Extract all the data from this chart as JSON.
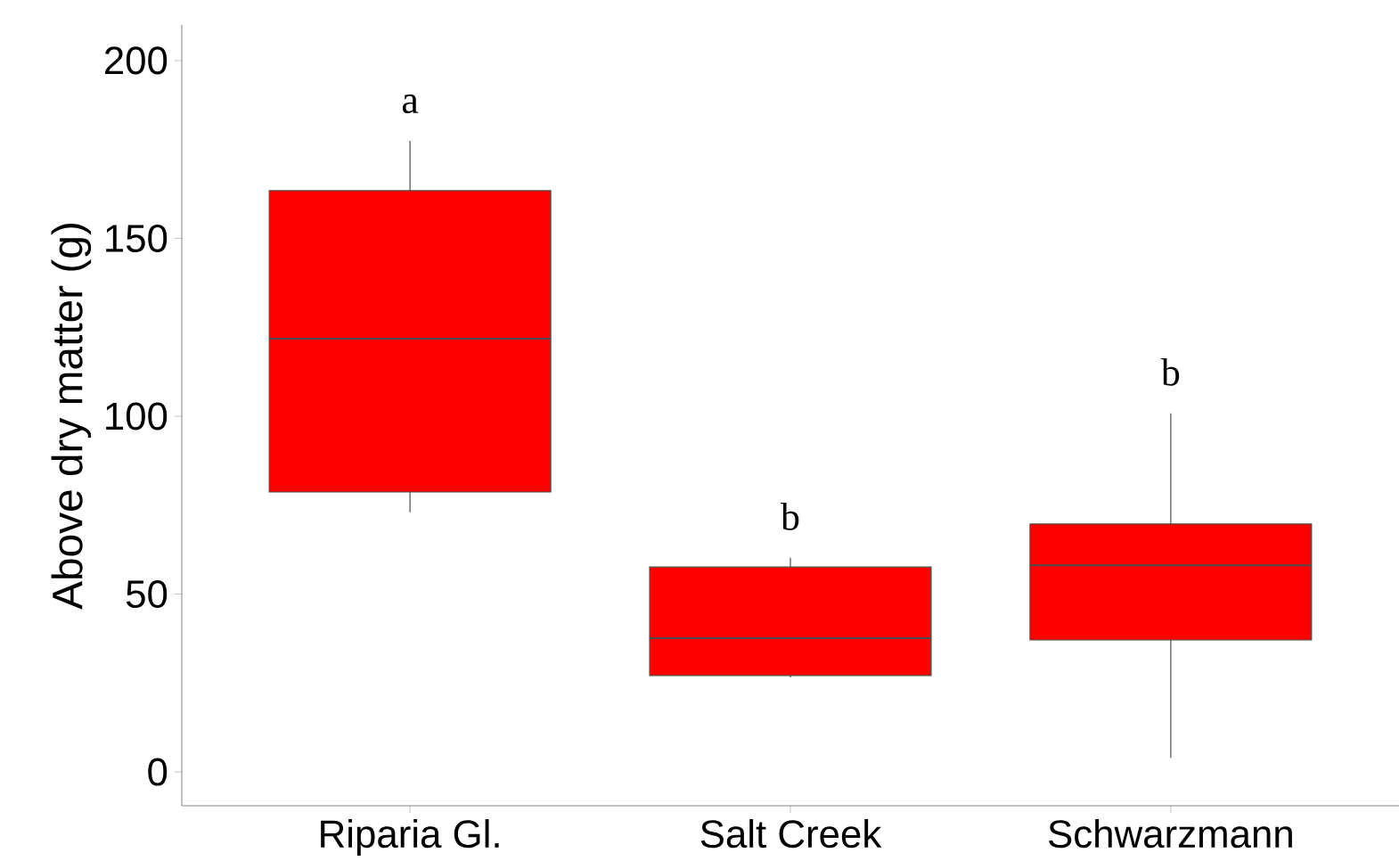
{
  "chart_data": {
    "type": "box",
    "ylabel": "Above dry matter (g)",
    "categories": [
      "Riparia Gl.",
      "Salt Creek",
      "Schwarzmann"
    ],
    "boxes": [
      {
        "low": 73,
        "q1": 78.7,
        "median": 121.8,
        "q3": 163.4,
        "high": 177.4
      },
      {
        "low": 26.6,
        "q1": 27.1,
        "median": 37.6,
        "q3": 57.6,
        "high": 60.2
      },
      {
        "low": 4,
        "q1": 37.1,
        "median": 58.1,
        "q3": 69.7,
        "high": 100.8
      }
    ],
    "color": "#ff0000",
    "ylim": [
      -9.5,
      210
    ],
    "yticks": [
      0,
      50,
      100,
      150,
      200
    ],
    "annotations": [
      "a",
      "b",
      "b"
    ]
  }
}
